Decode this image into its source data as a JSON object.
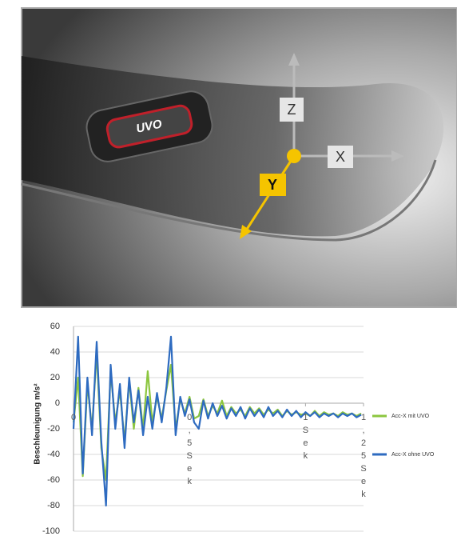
{
  "image": {
    "axis_labels": {
      "z": "Z",
      "x": "X",
      "y": "Y"
    }
  },
  "chart_data": {
    "type": "line",
    "y_label": "Beschleunigung m/s²",
    "x": [
      0,
      0.02,
      0.04,
      0.06,
      0.08,
      0.1,
      0.12,
      0.14,
      0.16,
      0.18,
      0.2,
      0.22,
      0.24,
      0.26,
      0.28,
      0.3,
      0.32,
      0.34,
      0.36,
      0.38,
      0.4,
      0.42,
      0.44,
      0.46,
      0.48,
      0.5,
      0.52,
      0.54,
      0.56,
      0.58,
      0.6,
      0.62,
      0.64,
      0.66,
      0.68,
      0.7,
      0.72,
      0.74,
      0.76,
      0.78,
      0.8,
      0.82,
      0.84,
      0.86,
      0.88,
      0.9,
      0.92,
      0.94,
      0.96,
      0.98,
      1,
      1.02,
      1.04,
      1.06,
      1.08,
      1.1,
      1.12,
      1.14,
      1.16,
      1.18,
      1.2,
      1.22,
      1.24
    ],
    "series": [
      {
        "name": "Acc-X mit UVO",
        "color": "#8cc63f",
        "values": [
          -15,
          20,
          -57,
          15,
          -20,
          40,
          -35,
          -60,
          25,
          -15,
          10,
          -30,
          18,
          -20,
          12,
          -20,
          25,
          -15,
          5,
          -12,
          10,
          30,
          -20,
          3,
          -8,
          5,
          -12,
          -10,
          3,
          -10,
          -2,
          -8,
          2,
          -10,
          -3,
          -8,
          -5,
          -10,
          -3,
          -8,
          -4,
          -9,
          -5,
          -8,
          -5,
          -10,
          -6,
          -9,
          -7,
          -9,
          -8,
          -10,
          -6,
          -10,
          -7,
          -9,
          -8,
          -10,
          -7,
          -9,
          -8,
          -10,
          -8
        ]
      },
      {
        "name": "Acc-X ohne UVO",
        "color": "#2e6bc0",
        "values": [
          -20,
          52,
          -55,
          20,
          -25,
          48,
          -30,
          -80,
          30,
          -20,
          15,
          -35,
          20,
          -15,
          10,
          -25,
          5,
          -20,
          8,
          -15,
          12,
          52,
          -25,
          5,
          -10,
          3,
          -15,
          -20,
          2,
          -12,
          0,
          -10,
          -2,
          -12,
          -4,
          -10,
          -3,
          -12,
          -4,
          -10,
          -5,
          -11,
          -3,
          -10,
          -6,
          -11,
          -5,
          -10,
          -6,
          -11,
          -7,
          -10,
          -7,
          -11,
          -8,
          -10,
          -8,
          -11,
          -8,
          -10,
          -8,
          -11,
          -9
        ]
      }
    ],
    "xlim": [
      0,
      1.25
    ],
    "xticks": [
      0,
      {
        "value": 0.5,
        "label": "0,5 Sek"
      },
      {
        "value": 1,
        "label": "1 Sek"
      },
      {
        "value": 1.25,
        "label": "1,25 Sek"
      }
    ],
    "ylim": [
      -100,
      60
    ],
    "yticks": [
      -100,
      -80,
      -60,
      -40,
      -20,
      0,
      20,
      40,
      60
    ],
    "grid": true,
    "legend": "right"
  }
}
